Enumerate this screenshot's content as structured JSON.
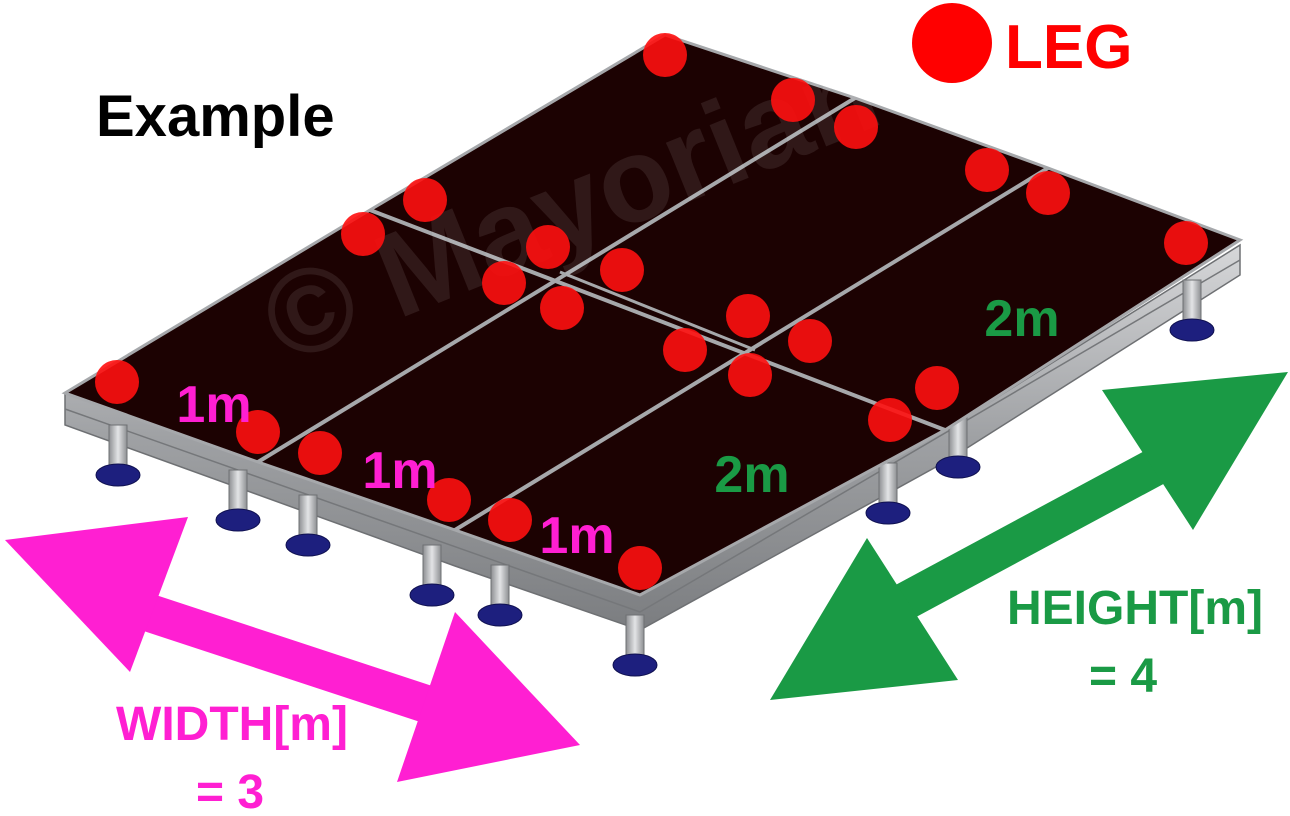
{
  "title": "Example",
  "legend": {
    "label": "LEG",
    "marker_color": "#ff0000",
    "label_color": "#ff0000"
  },
  "watermark": "© Mayorian",
  "panel_labels": [
    "1m",
    "1m",
    "1m",
    "2m",
    "2m"
  ],
  "width_label": {
    "text": "WIDTH[m]",
    "value": "= 3"
  },
  "height_label": {
    "text": "HEIGHT[m]",
    "value": "= 4"
  },
  "colors": {
    "width": "#ff1fd2",
    "height": "#1a9a45",
    "panel": "#1c0202",
    "frame": "#a6a8ab",
    "foot": "#1d1f7e",
    "leg": "#ff1010"
  }
}
